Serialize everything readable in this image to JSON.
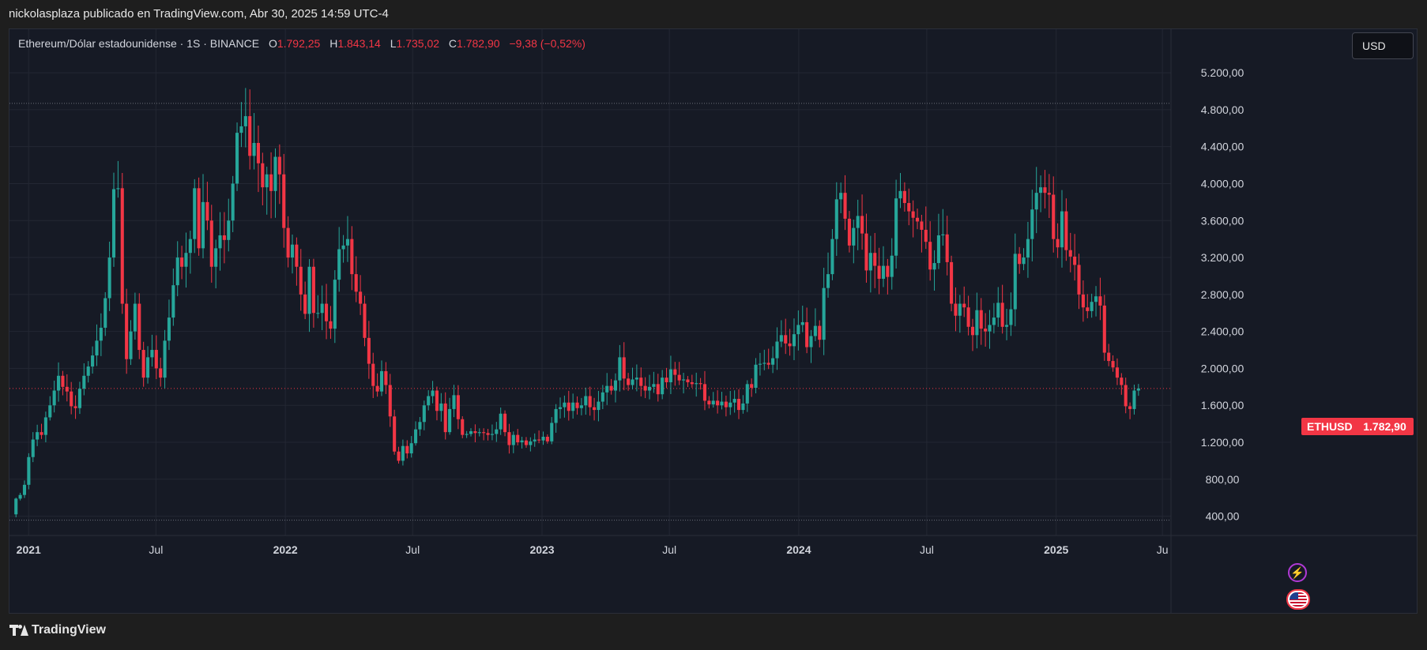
{
  "header": {
    "published_line": "nickolasplaza publicado en TradingView.com, Abr 30, 2025 14:59 UTC-4"
  },
  "legend": {
    "symbol": "Ethereum/Dólar estadounidense · 1S · BINANCE",
    "o_label": "O",
    "o_value": "1.792,25",
    "h_label": "H",
    "h_value": "1.843,14",
    "l_label": "L",
    "l_value": "1.735,02",
    "c_label": "C",
    "c_value": "1.782,90",
    "change": "−9,38 (−0,52%)"
  },
  "currency_button": "USD",
  "last_price": {
    "ticker": "ETHUSD",
    "value": "1.782,90",
    "numeric": 1782.9
  },
  "brand": "TradingView",
  "colors": {
    "background": "#161a25",
    "grid": "#232733",
    "up": "#26a69a",
    "down": "#f23645",
    "axis_text": "#d1d4dc"
  },
  "chart_data": {
    "type": "candlestick",
    "timeframe": "1S",
    "exchange": "BINANCE",
    "x_range": [
      "2020-12-07",
      "2025-06-02"
    ],
    "ylim": [
      200,
      5500
    ],
    "y_ticks": [
      400,
      800,
      1200,
      1600,
      2000,
      2400,
      2800,
      3200,
      3600,
      4000,
      4400,
      4800,
      5200
    ],
    "y_tick_labels": [
      "400,00",
      "800,00",
      "1.200,00",
      "1.600,00",
      "2.000,00",
      "2.400,00",
      "2.800,00",
      "3.200,00",
      "3.600,00",
      "4.000,00",
      "4.400,00",
      "4.800,00",
      "5.200,00"
    ],
    "x_ticks": [
      {
        "date": "2021-01-01",
        "label": "2021"
      },
      {
        "date": "2021-07-01",
        "label": "Jul"
      },
      {
        "date": "2022-01-01",
        "label": "2022"
      },
      {
        "date": "2022-07-01",
        "label": "Jul"
      },
      {
        "date": "2023-01-01",
        "label": "2023"
      },
      {
        "date": "2023-07-01",
        "label": "Jul"
      },
      {
        "date": "2024-01-01",
        "label": "2024"
      },
      {
        "date": "2024-07-01",
        "label": "Jul"
      },
      {
        "date": "2025-01-01",
        "label": "2025"
      },
      {
        "date": "2025-06-01",
        "label": "Ju"
      }
    ],
    "reference_lines": [
      4868,
      357
    ],
    "grid": true,
    "weekly_closes": [
      590,
      630,
      740,
      1040,
      1230,
      1310,
      1280,
      1470,
      1600,
      1760,
      1920,
      1800,
      1750,
      1590,
      1570,
      1780,
      1920,
      2020,
      2140,
      2300,
      2440,
      2760,
      3200,
      3940,
      3950,
      2700,
      2100,
      2400,
      2700,
      2200,
      1900,
      2120,
      2200,
      2000,
      1900,
      2300,
      2550,
      2900,
      3200,
      3100,
      3250,
      3400,
      3950,
      3300,
      3800,
      3600,
      3100,
      3300,
      3440,
      3390,
      3600,
      4000,
      4550,
      4620,
      4730,
      4300,
      4440,
      4220,
      3960,
      4100,
      3920,
      4290,
      4100,
      3520,
      3200,
      3340,
      3100,
      2800,
      2590,
      3100,
      2600,
      2600,
      2700,
      2510,
      2430,
      2960,
      3290,
      3330,
      3400,
      3020,
      2830,
      2700,
      2330,
      2050,
      1810,
      1750,
      1970,
      1820,
      1480,
      1100,
      1000,
      1160,
      1080,
      1190,
      1340,
      1420,
      1600,
      1700,
      1760,
      1540,
      1620,
      1310,
      1560,
      1710,
      1450,
      1280,
      1290,
      1320,
      1300,
      1310,
      1300,
      1280,
      1290,
      1340,
      1510,
      1310,
      1170,
      1280,
      1200,
      1220,
      1170,
      1210,
      1230,
      1220,
      1260,
      1210,
      1410,
      1560,
      1580,
      1630,
      1540,
      1630,
      1570,
      1600,
      1700,
      1580,
      1550,
      1640,
      1740,
      1810,
      1760,
      1870,
      2120,
      1890,
      1820,
      1880,
      1900,
      1810,
      1760,
      1800,
      1830,
      1720,
      1900,
      1850,
      1990,
      1930,
      1870,
      1880,
      1850,
      1830,
      1840,
      1830,
      1650,
      1610,
      1650,
      1600,
      1640,
      1580,
      1630,
      1670,
      1550,
      1620,
      1830,
      1790,
      2040,
      2050,
      2060,
      2040,
      2110,
      2290,
      2360,
      2270,
      2240,
      2370,
      2470,
      2500,
      2230,
      2350,
      2460,
      2310,
      2870,
      3020,
      3400,
      3830,
      3900,
      3620,
      3330,
      3520,
      3650,
      3460,
      3060,
      3250,
      3110,
      2970,
      3110,
      2990,
      3220,
      3840,
      3920,
      3790,
      3700,
      3630,
      3590,
      3500,
      3370,
      3070,
      3140,
      3440,
      3450,
      3150,
      2700,
      2570,
      2700,
      2660,
      2450,
      2360,
      2630,
      2430,
      2400,
      2470,
      2550,
      2710,
      2450,
      2470,
      2640,
      3240,
      3130,
      3200,
      3400,
      3720,
      3900,
      3960,
      3900,
      3880,
      3400,
      3310,
      3700,
      3280,
      3210,
      3120,
      2800,
      2660,
      2620,
      2720,
      2780,
      2680,
      2170,
      2080,
      2010,
      1900,
      1820,
      1590,
      1560,
      1760,
      1782.9
    ]
  }
}
